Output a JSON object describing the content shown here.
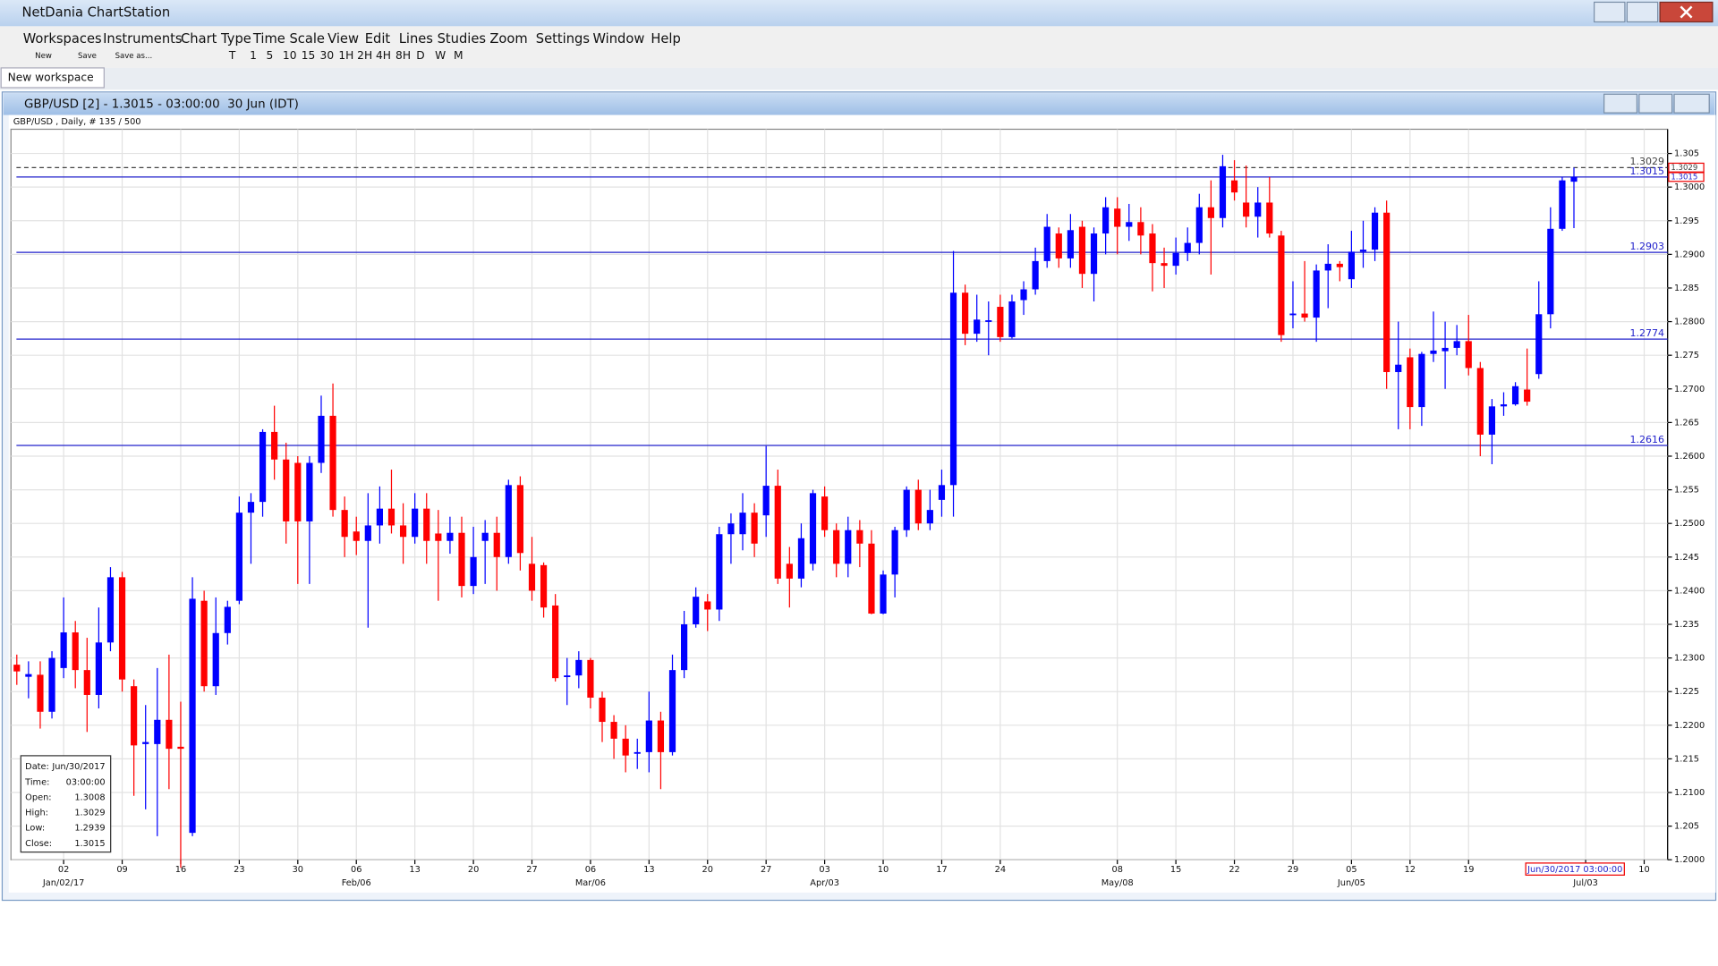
{
  "window": {
    "title": "NetDania ChartStation"
  },
  "menu": [
    "Workspaces",
    "Instruments",
    "Chart Type",
    "Time Scale",
    "View",
    "Edit",
    "Lines",
    "Studies",
    "Zoom",
    "Settings",
    "Window",
    "Help"
  ],
  "toolbar": [
    "New",
    "Save",
    "Save as...",
    "T",
    "1",
    "5",
    "10",
    "15",
    "30",
    "1H",
    "2H",
    "4H",
    "8H",
    "D",
    "W",
    "M"
  ],
  "tab": "New workspace",
  "chart_window_title": "GBP/USD [2] - 1.3015 - 03:00:00  30 Jun (IDT)",
  "chart_data": {
    "type": "candlestick",
    "subtitle": "GBP/USD , Daily, # 135 / 500",
    "up_color": "#0000ff",
    "down_color": "#ff0000",
    "grid": true,
    "open": [
      1.229,
      1.2272,
      1.2275,
      1.222,
      1.2285,
      1.2338,
      1.2282,
      1.2245,
      1.2323,
      1.242,
      1.2258,
      1.2172,
      1.2172,
      1.2208,
      1.2168,
      1.204,
      1.2385,
      1.2258,
      1.2337,
      1.2385,
      1.2516,
      1.2532,
      1.2636,
      1.2595,
      1.259,
      1.2503,
      1.259,
      1.266,
      1.252,
      1.2488,
      1.2474,
      1.2497,
      1.2522,
      1.2497,
      1.248,
      1.2522,
      1.2485,
      1.2474,
      1.2486,
      1.2407,
      1.2474,
      1.2486,
      1.245,
      1.2557,
      1.244,
      1.2438,
      1.2378,
      1.2272,
      1.2274,
      1.2297,
      1.2241,
      1.2205,
      1.218,
      1.2158,
      1.216,
      1.2207,
      1.216,
      1.2282,
      1.235,
      1.2384,
      1.2372,
      1.2484,
      1.2484,
      1.2516,
      1.2512,
      1.2556,
      1.244,
      1.2418,
      1.244,
      1.254,
      1.249,
      1.244,
      1.249,
      1.247,
      1.2366,
      1.2424,
      1.249,
      1.255,
      1.25,
      1.2535,
      1.2557,
      1.2843,
      1.2782,
      1.28,
      1.2822,
      1.2777,
      1.2832,
      1.2848,
      1.289,
      1.2931,
      1.2894,
      1.2941,
      1.2871,
      1.2931,
      1.2968,
      1.2941,
      1.2948,
      1.2931,
      1.2887,
      1.2883,
      1.2902,
      1.2917,
      1.297,
      1.2954,
      1.301,
      1.2977,
      1.2956,
      1.2977,
      1.2928,
      1.2811,
      1.2812,
      1.2806,
      1.2876,
      1.2886,
      1.2863,
      1.2904,
      1.2907,
      1.2962,
      1.2725,
      1.2747,
      1.2673,
      1.2752,
      1.2756,
      1.2761,
      1.2771,
      1.2731,
      1.2632,
      1.2674,
      1.2677,
      1.2699,
      1.2722,
      1.2811,
      1.2938,
      1.3008
    ],
    "high": [
      1.2305,
      1.2295,
      1.2295,
      1.231,
      1.239,
      1.2355,
      1.233,
      1.2375,
      1.2435,
      1.2428,
      1.2268,
      1.223,
      1.2285,
      1.2305,
      1.2235,
      1.242,
      1.24,
      1.239,
      1.2385,
      1.254,
      1.2545,
      1.264,
      1.2675,
      1.262,
      1.26,
      1.26,
      1.269,
      1.2708,
      1.254,
      1.251,
      1.2545,
      1.2555,
      1.258,
      1.253,
      1.2545,
      1.2545,
      1.252,
      1.251,
      1.251,
      1.2495,
      1.2505,
      1.251,
      1.2565,
      1.257,
      1.248,
      1.2442,
      1.2395,
      1.23,
      1.231,
      1.23,
      1.225,
      1.2215,
      1.22,
      1.218,
      1.225,
      1.222,
      1.2305,
      1.237,
      1.2405,
      1.2395,
      1.2495,
      1.2515,
      1.2545,
      1.253,
      1.2615,
      1.258,
      1.2465,
      1.25,
      1.255,
      1.2555,
      1.25,
      1.251,
      1.2505,
      1.249,
      1.243,
      1.2495,
      1.2555,
      1.2565,
      1.255,
      1.258,
      1.2905,
      1.2855,
      1.284,
      1.283,
      1.284,
      1.284,
      1.286,
      1.291,
      1.296,
      1.294,
      1.296,
      1.295,
      1.294,
      1.2985,
      1.2985,
      1.2975,
      1.297,
      1.2945,
      1.291,
      1.2925,
      1.294,
      1.299,
      1.301,
      1.3048,
      1.304,
      1.3032,
      1.3,
      1.3015,
      1.2935,
      1.286,
      1.289,
      1.2885,
      1.2915,
      1.289,
      1.2935,
      1.295,
      1.297,
      1.298,
      1.28,
      1.276,
      1.2755,
      1.2815,
      1.28,
      1.2795,
      1.281,
      1.274,
      1.2685,
      1.2695,
      1.271,
      1.276,
      1.286,
      1.297,
      1.3015,
      1.3029
    ],
    "low": [
      1.226,
      1.224,
      1.2195,
      1.221,
      1.227,
      1.2255,
      1.219,
      1.2225,
      1.231,
      1.225,
      1.2095,
      1.2075,
      1.2035,
      1.2105,
      1.1988,
      1.2035,
      1.225,
      1.2245,
      1.232,
      1.238,
      1.244,
      1.251,
      1.2565,
      1.247,
      1.241,
      1.241,
      1.2575,
      1.251,
      1.245,
      1.2453,
      1.2345,
      1.247,
      1.2485,
      1.244,
      1.247,
      1.244,
      1.2385,
      1.2455,
      1.239,
      1.2395,
      1.241,
      1.24,
      1.244,
      1.243,
      1.2385,
      1.236,
      1.2265,
      1.223,
      1.2255,
      1.2225,
      1.2175,
      1.215,
      1.213,
      1.2135,
      1.213,
      1.2105,
      1.2155,
      1.227,
      1.2345,
      1.234,
      1.2355,
      1.244,
      1.246,
      1.245,
      1.248,
      1.241,
      1.2375,
      1.2405,
      1.243,
      1.248,
      1.242,
      1.242,
      1.2435,
      1.2365,
      1.2365,
      1.239,
      1.248,
      1.249,
      1.249,
      1.251,
      1.251,
      1.2765,
      1.277,
      1.275,
      1.277,
      1.2775,
      1.281,
      1.284,
      1.288,
      1.288,
      1.288,
      1.285,
      1.283,
      1.29,
      1.29,
      1.292,
      1.29,
      1.2845,
      1.285,
      1.287,
      1.289,
      1.29,
      1.287,
      1.294,
      1.298,
      1.294,
      1.2925,
      1.2925,
      1.277,
      1.279,
      1.28,
      1.277,
      1.282,
      1.286,
      1.285,
      1.288,
      1.289,
      1.27,
      1.264,
      1.264,
      1.2645,
      1.274,
      1.27,
      1.275,
      1.272,
      1.26,
      1.2588,
      1.266,
      1.2675,
      1.2675,
      1.2715,
      1.279,
      1.2935,
      1.2939
    ],
    "close": [
      1.228,
      1.2276,
      1.222,
      1.23,
      1.2338,
      1.2282,
      1.2245,
      1.2323,
      1.242,
      1.2268,
      1.217,
      1.2175,
      1.2208,
      1.2165,
      1.2165,
      1.2388,
      1.2258,
      1.2337,
      1.2376,
      1.2516,
      1.2532,
      1.2636,
      1.2595,
      1.2503,
      1.2503,
      1.259,
      1.266,
      1.252,
      1.248,
      1.2474,
      1.2497,
      1.2522,
      1.2497,
      1.248,
      1.2522,
      1.2474,
      1.2474,
      1.2486,
      1.2407,
      1.245,
      1.2486,
      1.245,
      1.2557,
      1.2456,
      1.24,
      1.2375,
      1.227,
      1.2274,
      1.2297,
      1.2241,
      1.2205,
      1.218,
      1.2155,
      1.216,
      1.2207,
      1.216,
      1.2282,
      1.235,
      1.2391,
      1.2372,
      1.2484,
      1.25,
      1.2516,
      1.247,
      1.2556,
      1.2418,
      1.2418,
      1.2478,
      1.2545,
      1.249,
      1.244,
      1.249,
      1.247,
      1.2366,
      1.2424,
      1.249,
      1.255,
      1.25,
      1.252,
      1.2557,
      1.2843,
      1.2782,
      1.2803,
      1.2802,
      1.2777,
      1.283,
      1.2848,
      1.289,
      1.2941,
      1.2894,
      1.2936,
      1.2871,
      1.2931,
      1.297,
      1.2941,
      1.2948,
      1.2928,
      1.2887,
      1.2883,
      1.2902,
      1.2917,
      1.297,
      1.2954,
      1.3031,
      1.2992,
      1.2956,
      1.2977,
      1.2931,
      1.278,
      1.2812,
      1.2806,
      1.2876,
      1.2886,
      1.2881,
      1.2904,
      1.2907,
      1.2962,
      1.2725,
      1.2736,
      1.2673,
      1.2752,
      1.2757,
      1.2761,
      1.2771,
      1.2731,
      1.2632,
      1.2674,
      1.2677,
      1.2704,
      1.2681,
      1.2811,
      1.2938,
      1.301,
      1.3015
    ],
    "xlim": [
      -0.5,
      141
    ],
    "xticks": [
      {
        "value": 4,
        "label": "02"
      },
      {
        "value": 9,
        "label": "09"
      },
      {
        "value": 14,
        "label": "16"
      },
      {
        "value": 19,
        "label": "23"
      },
      {
        "value": 24,
        "label": "30"
      },
      {
        "value": 29,
        "label": "06"
      },
      {
        "value": 34,
        "label": "13"
      },
      {
        "value": 39,
        "label": "20"
      },
      {
        "value": 44,
        "label": "27"
      },
      {
        "value": 49,
        "label": "06"
      },
      {
        "value": 54,
        "label": "13"
      },
      {
        "value": 59,
        "label": "20"
      },
      {
        "value": 64,
        "label": "27"
      },
      {
        "value": 69,
        "label": "03"
      },
      {
        "value": 74,
        "label": "10"
      },
      {
        "value": 79,
        "label": "17"
      },
      {
        "value": 84,
        "label": "24"
      },
      {
        "value": 94,
        "label": "08"
      },
      {
        "value": 99,
        "label": "15"
      },
      {
        "value": 104,
        "label": "22"
      },
      {
        "value": 109,
        "label": "29"
      },
      {
        "value": 114,
        "label": "05"
      },
      {
        "value": 119,
        "label": "12"
      },
      {
        "value": 124,
        "label": "19"
      },
      {
        "value": 134,
        "label": "03"
      },
      {
        "value": 139,
        "label": "10"
      }
    ],
    "xticks_major": [
      {
        "value": 4,
        "label": "Jan/02/17"
      },
      {
        "value": 29,
        "label": "Feb/06"
      },
      {
        "value": 49,
        "label": "Mar/06"
      },
      {
        "value": 69,
        "label": "Apr/03"
      },
      {
        "value": 94,
        "label": "May/08"
      },
      {
        "value": 114,
        "label": "Jun/05"
      },
      {
        "value": 134,
        "label": "Jul/03"
      }
    ],
    "ylim": [
      1.2,
      1.3086
    ],
    "yticks": [
      {
        "value": 1.2,
        "label": "1.2000"
      },
      1.205,
      {
        "value": 1.21,
        "label": "1.2100"
      },
      1.215,
      {
        "value": 1.22,
        "label": "1.2200"
      },
      1.225,
      {
        "value": 1.23,
        "label": "1.2300"
      },
      1.235,
      {
        "value": 1.24,
        "label": "1.2400"
      },
      1.245,
      {
        "value": 1.25,
        "label": "1.2500"
      },
      1.255,
      {
        "value": 1.26,
        "label": "1.2600"
      },
      1.265,
      {
        "value": 1.27,
        "label": "1.2700"
      },
      1.275,
      {
        "value": 1.28,
        "label": "1.2800"
      },
      1.285,
      {
        "value": 1.29,
        "label": "1.2900"
      },
      1.295,
      {
        "value": 1.3,
        "label": "1.3000"
      },
      1.305
    ],
    "price_lines": [
      {
        "value": 1.3029,
        "color": "#444444",
        "dashed": true,
        "tag": true
      },
      {
        "value": 1.3015,
        "color": "#2222cc",
        "tag": true
      },
      {
        "value": 1.2903,
        "color": "#2222cc"
      },
      {
        "value": 1.2774,
        "color": "#2222cc"
      },
      {
        "value": 1.2616,
        "color": "#2222cc"
      }
    ]
  },
  "info_box": [
    [
      "Date:",
      "Jun/30/2017"
    ],
    [
      "Time:",
      "03:00:00"
    ],
    [
      "Open:",
      "1.3008"
    ],
    [
      "High:",
      "1.3029"
    ],
    [
      "Low:",
      "1.2939"
    ],
    [
      "Close:",
      "1.3015"
    ]
  ],
  "crosshair_label": "Jun/30/2017 03:00:00"
}
